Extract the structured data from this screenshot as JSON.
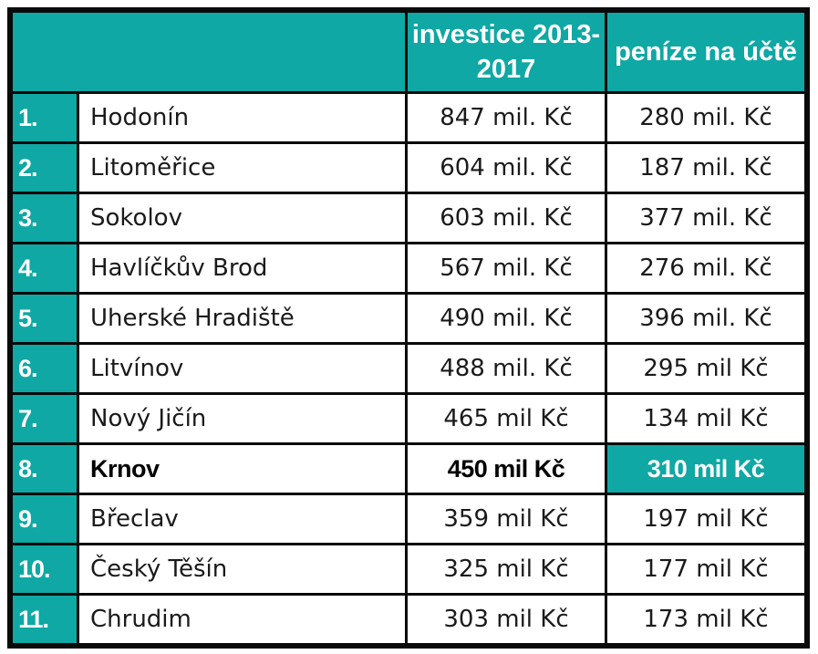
{
  "header": {
    "col_investice": "investice 2013-2017",
    "col_penize": "peníze na účtě"
  },
  "rows": [
    {
      "rank": "1.",
      "city": "Hodonín",
      "investice": "847 mil. Kč",
      "penize": "280 mil. Kč"
    },
    {
      "rank": "2.",
      "city": "Litoměřice",
      "investice": "604 mil. Kč",
      "penize": "187 mil. Kč"
    },
    {
      "rank": "3.",
      "city": "Sokolov",
      "investice": "603 mil. Kč",
      "penize": "377 mil. Kč"
    },
    {
      "rank": "4.",
      "city": "Havlíčkův Brod",
      "investice": "567 mil. Kč",
      "penize": "276 mil. Kč"
    },
    {
      "rank": "5.",
      "city": "Uherské Hradiště",
      "investice": "490 mil. Kč",
      "penize": "396 mil. Kč"
    },
    {
      "rank": "6.",
      "city": "Litvínov",
      "investice": "488 mil. Kč",
      "penize": "295 mil Kč"
    },
    {
      "rank": "7.",
      "city": "Nový Jičín",
      "investice": "465 mil Kč",
      "penize": "134 mil Kč"
    },
    {
      "rank": "8.",
      "city": "Krnov",
      "investice": "450 mil Kč",
      "penize": "310 mil Kč",
      "highlight": true
    },
    {
      "rank": "9.",
      "city": "Břeclav",
      "investice": "359 mil Kč",
      "penize": "197 mil Kč"
    },
    {
      "rank": "10.",
      "city": "Český Těšín",
      "investice": "325 mil Kč",
      "penize": "177 mil Kč"
    },
    {
      "rank": "11.",
      "city": "Chrudim",
      "investice": "303 mil Kč",
      "penize": "173 mil Kč"
    }
  ],
  "colors": {
    "accent": "#0fa8a4",
    "border": "#0a0a0a",
    "text": "#1a1a1a"
  }
}
